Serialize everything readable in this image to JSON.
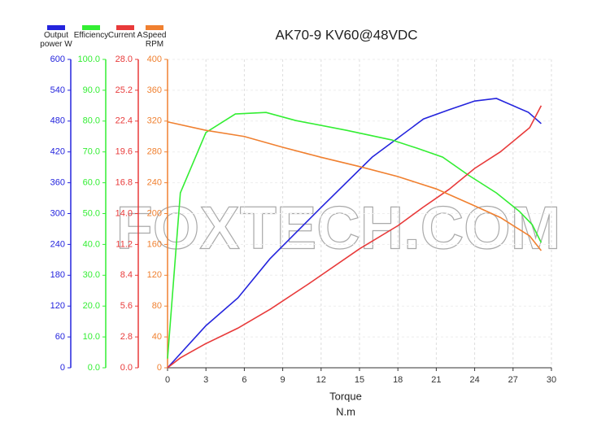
{
  "chart_data": {
    "type": "line",
    "title": "AK70-9 KV60@48VDC",
    "xlabel": "Torque",
    "xlabel_unit": "N.m",
    "watermark": "FOXTECH.COM",
    "xlim": [
      0,
      30
    ],
    "xticks": [
      0,
      3,
      6,
      9,
      12,
      15,
      18,
      21,
      24,
      27,
      30
    ],
    "grid": true,
    "axes": [
      {
        "lim": [
          0,
          600
        ],
        "ticks": [
          0,
          60,
          120,
          180,
          240,
          300,
          360,
          420,
          480,
          540,
          600
        ]
      },
      {
        "lim": [
          0,
          100
        ],
        "ticks": [
          {
            "value": 0,
            "label": "0.0"
          },
          {
            "value": 10,
            "label": "10.0"
          },
          {
            "value": 20,
            "label": "20.0"
          },
          {
            "value": 30,
            "label": "30.0"
          },
          {
            "value": 40,
            "label": "40.0"
          },
          {
            "value": 50,
            "label": "50.0"
          },
          {
            "value": 60,
            "label": "60.0"
          },
          {
            "value": 70,
            "label": "70.0"
          },
          {
            "value": 80,
            "label": "80.0"
          },
          {
            "value": 90,
            "label": "90.0"
          },
          {
            "value": 100,
            "label": "100.0"
          }
        ]
      },
      {
        "lim": [
          0,
          28
        ],
        "ticks": [
          {
            "value": 0,
            "label": "0.0"
          },
          {
            "value": 2.8,
            "label": "2.8"
          },
          {
            "value": 5.6,
            "label": "5.6"
          },
          {
            "value": 8.4,
            "label": "8.4"
          },
          {
            "value": 11.2,
            "label": "11.2"
          },
          {
            "value": 14,
            "label": "14.0"
          },
          {
            "value": 16.8,
            "label": "16.8"
          },
          {
            "value": 19.6,
            "label": "19.6"
          },
          {
            "value": 22.4,
            "label": "22.4"
          },
          {
            "value": 25.2,
            "label": "25.2"
          },
          {
            "value": 28,
            "label": "28.0"
          }
        ]
      },
      {
        "lim": [
          0,
          400
        ],
        "ticks": [
          0,
          40,
          80,
          120,
          160,
          200,
          240,
          280,
          320,
          360,
          400
        ]
      }
    ],
    "series": [
      {
        "name": "Output power W",
        "color": "#2424dd",
        "axis": 0,
        "x": [
          0,
          3,
          5.5,
          8,
          12,
          16,
          20,
          22,
          24,
          25.7,
          28.2,
          29.2
        ],
        "values": [
          0,
          82,
          136,
          212,
          312,
          410,
          484,
          502,
          519,
          524,
          497,
          475
        ]
      },
      {
        "name": "Efficiency",
        "color": "#33ee33",
        "axis": 1,
        "x": [
          0,
          1,
          3,
          5.3,
          7.7,
          10,
          14,
          17.5,
          19.5,
          21.5,
          23.5,
          25.7,
          27.5,
          28.5,
          29.2
        ],
        "values": [
          3,
          56.7,
          76.3,
          82.3,
          82.8,
          80.2,
          77,
          73.9,
          71.2,
          68.3,
          62.5,
          56.7,
          50.7,
          46.4,
          40.6
        ]
      },
      {
        "name": "Current A",
        "color": "#e83a3a",
        "axis": 2,
        "x": [
          0,
          1,
          3,
          5.5,
          8,
          11,
          15,
          18,
          20,
          22,
          24,
          26,
          28.3,
          29.2
        ],
        "values": [
          0,
          0.9,
          2.2,
          3.6,
          5.3,
          7.6,
          10.8,
          12.9,
          14.6,
          16.2,
          18.1,
          19.6,
          21.8,
          23.8
        ]
      },
      {
        "name": "Speed RPM",
        "color": "#f08030",
        "axis": 3,
        "x": [
          0,
          3,
          6,
          9,
          12,
          15,
          18,
          21,
          24,
          26,
          28.3,
          29.2
        ],
        "values": [
          319,
          308,
          300,
          286,
          273,
          261,
          248,
          232,
          210,
          195,
          171,
          152
        ]
      }
    ]
  }
}
